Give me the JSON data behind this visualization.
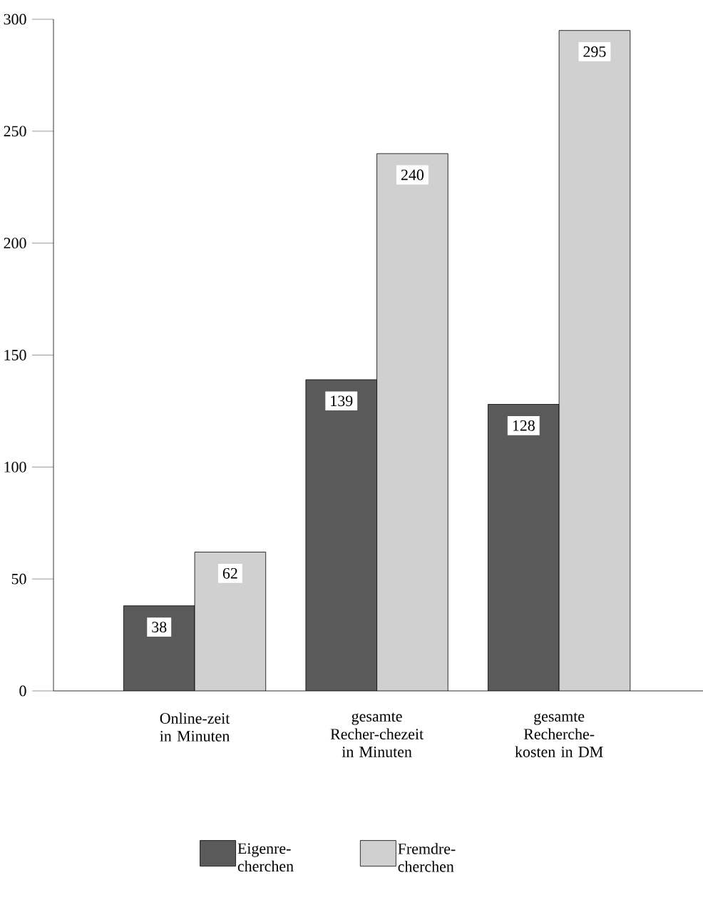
{
  "chart_data": {
    "type": "bar",
    "categories": [
      "Online-zeit in Minuten",
      "gesamte Recher-chezeit in Minuten",
      "gesamte Recherche-kosten in DM"
    ],
    "series": [
      {
        "name": "Eigenre-cherchen",
        "color": "#5a5a5a",
        "values": [
          38,
          139,
          128
        ]
      },
      {
        "name": "Fremdre-cherchen",
        "color": "#d0d0d0",
        "values": [
          62,
          240,
          295
        ]
      }
    ],
    "ylim": [
      0,
      300
    ],
    "yticks": [
      0,
      50,
      100,
      150,
      200,
      250,
      300
    ],
    "data_labels": true,
    "legend": "bottom",
    "grid": false
  }
}
